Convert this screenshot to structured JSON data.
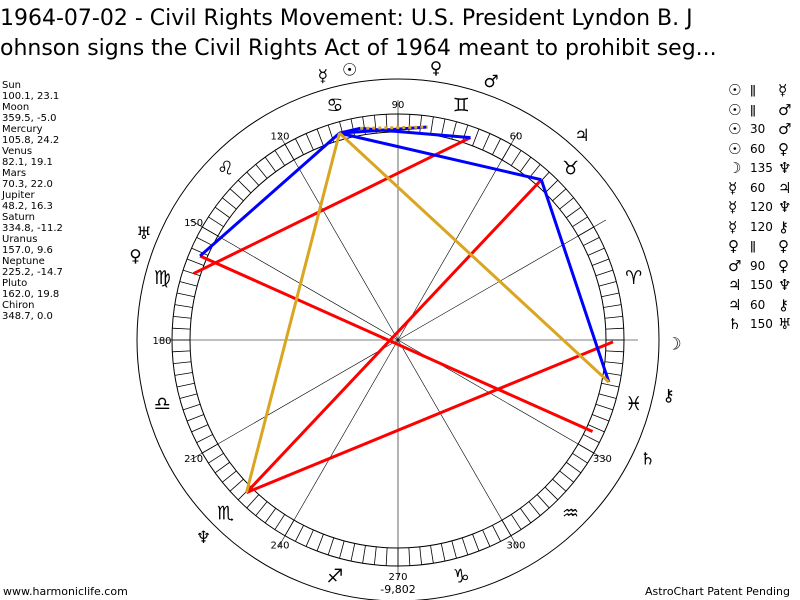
{
  "title": {
    "line1": "1964-07-02 - Civil Rights Movement: U.S. President Lyndon B. J",
    "line2": "ohnson signs the Civil Rights Act of 1964 meant to prohibit seg..."
  },
  "planets": [
    {
      "name": "Sun",
      "coords": "100.1, 23.1"
    },
    {
      "name": "Moon",
      "coords": "359.5, -5.0"
    },
    {
      "name": "Mercury",
      "coords": "105.8, 24.2"
    },
    {
      "name": "Venus",
      "coords": "82.1, 19.1"
    },
    {
      "name": "Mars",
      "coords": "70.3, 22.0"
    },
    {
      "name": "Jupiter",
      "coords": "48.2, 16.3"
    },
    {
      "name": "Saturn",
      "coords": "334.8, -11.2"
    },
    {
      "name": "Uranus",
      "coords": "157.0, 9.6"
    },
    {
      "name": "Neptune",
      "coords": "225.2, -14.7"
    },
    {
      "name": "Pluto",
      "coords": "162.0, 19.8"
    },
    {
      "name": "Chiron",
      "coords": "348.7, 0.0"
    }
  ],
  "aspects": [
    {
      "p1": "☉",
      "sym": "ǁ",
      "p2": "☿"
    },
    {
      "p1": "☉",
      "sym": "ǁ",
      "p2": "♂"
    },
    {
      "p1": "☉",
      "sym": "30",
      "p2": "♂"
    },
    {
      "p1": "☉",
      "sym": "60",
      "p2": "♀"
    },
    {
      "p1": "☽",
      "sym": "135",
      "p2": "♆"
    },
    {
      "p1": "☿",
      "sym": "60",
      "p2": "♃"
    },
    {
      "p1": "☿",
      "sym": "120",
      "p2": "♆"
    },
    {
      "p1": "☿",
      "sym": "120",
      "p2": "⚷"
    },
    {
      "p1": "♀",
      "sym": "ǁ",
      "p2": "♀"
    },
    {
      "p1": "♂",
      "sym": "90",
      "p2": "♀"
    },
    {
      "p1": "♃",
      "sym": "150",
      "p2": "♆"
    },
    {
      "p1": "♃",
      "sym": "60",
      "p2": "⚷"
    },
    {
      "p1": "♄",
      "sym": "150",
      "p2": "♅"
    }
  ],
  "degree_labels": [
    "60",
    "90",
    "120",
    "150",
    "180",
    "210",
    "240",
    "270",
    "300",
    "330"
  ],
  "zodiac": [
    {
      "sign": "aries",
      "glyph": "♈"
    },
    {
      "sign": "taurus",
      "glyph": "♉"
    },
    {
      "sign": "gemini",
      "glyph": "♊"
    },
    {
      "sign": "cancer",
      "glyph": "♋"
    },
    {
      "sign": "leo",
      "glyph": "♌"
    },
    {
      "sign": "virgo",
      "glyph": "♍"
    },
    {
      "sign": "libra",
      "glyph": "♎"
    },
    {
      "sign": "scorpio",
      "glyph": "♏"
    },
    {
      "sign": "sagittarius",
      "glyph": "♐"
    },
    {
      "sign": "capricorn",
      "glyph": "♑"
    },
    {
      "sign": "aquarius",
      "glyph": "♒"
    },
    {
      "sign": "pisces",
      "glyph": "♓"
    }
  ],
  "bodies": [
    {
      "name": "sun",
      "glyph": "☉",
      "lon": 100.1
    },
    {
      "name": "moon",
      "glyph": "☽",
      "lon": 359.5
    },
    {
      "name": "mercury",
      "glyph": "☿",
      "lon": 105.8
    },
    {
      "name": "venus",
      "glyph": "♀",
      "lon": 82.1
    },
    {
      "name": "mars",
      "glyph": "♂",
      "lon": 70.3
    },
    {
      "name": "jupiter",
      "glyph": "♃",
      "lon": 48.2
    },
    {
      "name": "saturn",
      "glyph": "♄",
      "lon": 334.8
    },
    {
      "name": "uranus",
      "glyph": "♅",
      "lon": 157.0
    },
    {
      "name": "neptune",
      "glyph": "♆",
      "lon": 225.2
    },
    {
      "name": "pluto",
      "glyph": "♀",
      "lon": 162.0
    },
    {
      "name": "chiron",
      "glyph": "⚷",
      "lon": 348.7
    }
  ],
  "aspect_lines": [
    {
      "a": "moon",
      "b": "neptune",
      "color": "#ff0000"
    },
    {
      "a": "mars",
      "b": "pluto",
      "color": "#ff0000"
    },
    {
      "a": "jupiter",
      "b": "neptune",
      "color": "#ff0000"
    },
    {
      "a": "saturn",
      "b": "uranus",
      "color": "#ff0000"
    },
    {
      "a": "sun",
      "b": "mars",
      "color": "#0000ff"
    },
    {
      "a": "sun",
      "b": "mercury",
      "color": "#0000ff"
    },
    {
      "a": "venus",
      "b": "mercury",
      "color": "#0000ff"
    },
    {
      "a": "mercury",
      "b": "jupiter",
      "color": "#0000ff"
    },
    {
      "a": "jupiter",
      "b": "chiron",
      "color": "#0000ff"
    },
    {
      "a": "mercury",
      "b": "uranus",
      "color": "#0000ff"
    },
    {
      "a": "mercury",
      "b": "chiron",
      "color": "#daa520"
    },
    {
      "a": "mercury",
      "b": "neptune",
      "color": "#daa520"
    },
    {
      "a": "sun",
      "b": "venus",
      "color": "#daa520",
      "dotted": true
    }
  ],
  "colors": {
    "opposition": "#ff0000",
    "harmonious": "#0000ff",
    "minor": "#daa520"
  },
  "center_number": "-9,802",
  "footer": {
    "left": "www.harmoniclife.com",
    "right": "AstroChart Patent Pending"
  }
}
